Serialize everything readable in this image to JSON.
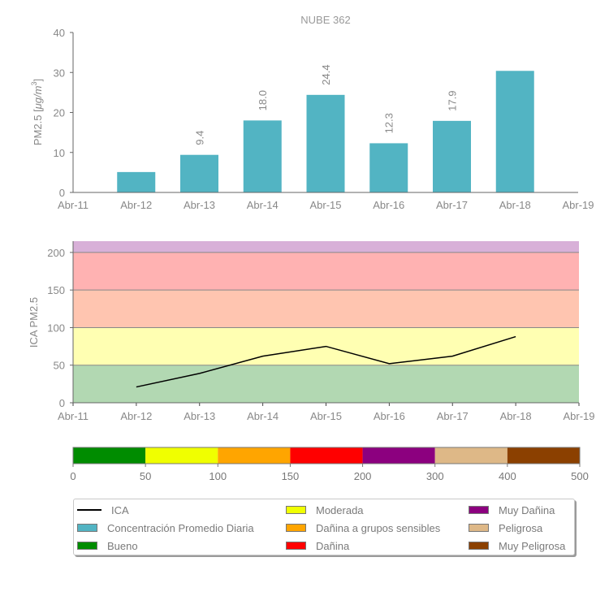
{
  "chart_data": [
    {
      "type": "bar",
      "title": "NUBE 362",
      "xlabel": "",
      "ylabel": "PM2.5 [μg/m3]",
      "ylabel_parts": {
        "main": "PM2.5 [",
        "unit": "μg/m",
        "sup": "3",
        "end": "]"
      },
      "categories": [
        "Abr-11",
        "Abr-12",
        "Abr-13",
        "Abr-14",
        "Abr-15",
        "Abr-16",
        "Abr-17",
        "Abr-18",
        "Abr-19"
      ],
      "bar_categories": [
        "Abr-12",
        "Abr-13",
        "Abr-14",
        "Abr-15",
        "Abr-16",
        "Abr-17",
        "Abr-18"
      ],
      "values": [
        5.1,
        9.4,
        18.0,
        24.4,
        12.3,
        17.9,
        30.4
      ],
      "data_labels": [
        "",
        "9.4",
        "18.0",
        "24.4",
        "12.3",
        "17.9",
        ""
      ],
      "ylim": [
        0,
        40
      ],
      "yticks": [
        0,
        10,
        20,
        30,
        40
      ],
      "bar_color": "#52B4C3",
      "grid": false
    },
    {
      "type": "line",
      "title": "",
      "xlabel": "",
      "ylabel": "ICA PM2.5",
      "categories": [
        "Abr-11",
        "Abr-12",
        "Abr-13",
        "Abr-14",
        "Abr-15",
        "Abr-16",
        "Abr-17",
        "Abr-18",
        "Abr-19"
      ],
      "series": [
        {
          "name": "ICA",
          "x": [
            "Abr-12",
            "Abr-13",
            "Abr-14",
            "Abr-15",
            "Abr-16",
            "Abr-17",
            "Abr-18"
          ],
          "values": [
            21,
            39,
            62,
            75,
            52,
            62,
            88
          ],
          "color": "#000000"
        }
      ],
      "ylim": [
        0,
        215
      ],
      "yticks": [
        0,
        50,
        100,
        150,
        200
      ],
      "bands": [
        {
          "from": 0,
          "to": 50,
          "color": "#B2D8B2"
        },
        {
          "from": 50,
          "to": 100,
          "color": "#FFFFB2"
        },
        {
          "from": 100,
          "to": 150,
          "color": "#FFC5B0"
        },
        {
          "from": 150,
          "to": 200,
          "color": "#FFB2B2"
        },
        {
          "from": 200,
          "to": 215,
          "color": "#D8B0D8"
        }
      ],
      "grid": false
    },
    {
      "type": "colorbar",
      "ticks": [
        0,
        50,
        100,
        150,
        200,
        300,
        400,
        500
      ],
      "segments": [
        {
          "from": 0,
          "to": 50,
          "color": "#008C00"
        },
        {
          "from": 50,
          "to": 100,
          "color": "#F0FF00"
        },
        {
          "from": 100,
          "to": 150,
          "color": "#FFA500"
        },
        {
          "from": 150,
          "to": 200,
          "color": "#FF0000"
        },
        {
          "from": 200,
          "to": 300,
          "color": "#8C007F"
        },
        {
          "from": 300,
          "to": 400,
          "color": "#DEB887"
        },
        {
          "from": 400,
          "to": 500,
          "color": "#8B4000"
        }
      ]
    }
  ],
  "legend": {
    "placement": "bottom",
    "columns": [
      [
        {
          "label": "ICA",
          "type": "line",
          "color": "#000000"
        },
        {
          "label": "Concentración Promedio Diaria",
          "type": "patch",
          "color": "#52B4C3"
        },
        {
          "label": "Bueno",
          "type": "patch",
          "color": "#008C00"
        }
      ],
      [
        {
          "label": "Moderada",
          "type": "patch",
          "color": "#F0FF00"
        },
        {
          "label": "Dañina a grupos sensibles",
          "type": "patch",
          "color": "#FFA500"
        },
        {
          "label": "Dañina",
          "type": "patch",
          "color": "#FF0000"
        }
      ],
      [
        {
          "label": "Muy Dañina",
          "type": "patch",
          "color": "#8C007F"
        },
        {
          "label": "Peligrosa",
          "type": "patch",
          "color": "#DEB887"
        },
        {
          "label": "Muy Peligrosa",
          "type": "patch",
          "color": "#8B4000"
        }
      ]
    ]
  }
}
